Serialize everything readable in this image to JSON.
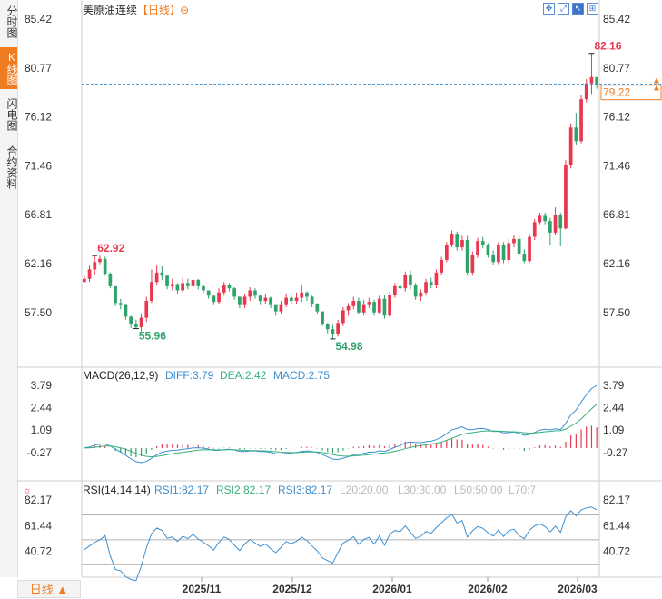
{
  "sidebar": {
    "tabs": [
      {
        "label": "分时图",
        "active": false
      },
      {
        "label": "K线图",
        "active": true
      },
      {
        "label": "闪电图",
        "active": false
      },
      {
        "label": "合约资料",
        "active": false
      }
    ]
  },
  "header": {
    "title": "美原油连续",
    "period_tag": "【日线】",
    "toolbar_icons": [
      "move-icon",
      "expand-icon",
      "cursor-icon",
      "zoom-icon"
    ]
  },
  "bottom": {
    "period_button": "日线 ▲"
  },
  "colors": {
    "up": "#e8384f",
    "down": "#2fa36b",
    "accent": "#f07c22",
    "diff": "#3d8fd1",
    "dea": "#37b07d",
    "rsi": "#3d8fd1"
  },
  "chart_data": [
    {
      "type": "candlestick",
      "title": "美原油连续【日线】",
      "y_ticks": [
        "85.42",
        "80.77",
        "76.12",
        "71.46",
        "66.81",
        "62.16",
        "57.50"
      ],
      "ylim": [
        53.5,
        85.42
      ],
      "x_ticks": [
        "2025/11",
        "2025/12",
        "2026/01",
        "2026/02",
        "2026/03"
      ],
      "current_price": "79.22",
      "annotations": [
        {
          "label": "62.92",
          "kind": "high"
        },
        {
          "label": "55.96",
          "kind": "low"
        },
        {
          "label": "54.98",
          "kind": "low"
        },
        {
          "label": "82.16",
          "kind": "high"
        }
      ],
      "close": [
        60.7,
        61.6,
        62.3,
        62.6,
        61.2,
        60.0,
        58.4,
        58.2,
        57.1,
        56.4,
        56.1,
        57.0,
        58.6,
        60.4,
        61.3,
        61.0,
        60.0,
        60.2,
        59.6,
        60.3,
        60.0,
        60.6,
        60.0,
        59.6,
        59.1,
        58.5,
        59.4,
        60.1,
        59.8,
        59.0,
        58.2,
        59.0,
        59.6,
        59.1,
        58.6,
        58.9,
        58.2,
        57.6,
        58.2,
        58.9,
        58.6,
        58.9,
        59.4,
        59.0,
        58.3,
        57.6,
        56.4,
        55.9,
        55.4,
        56.5,
        57.7,
        58.1,
        58.6,
        57.5,
        58.2,
        58.5,
        57.5,
        58.8,
        57.2,
        59.2,
        60.0,
        59.8,
        61.1,
        60.1,
        59.0,
        59.4,
        60.4,
        60.1,
        61.3,
        62.5,
        63.9,
        65.0,
        63.7,
        64.4,
        61.3,
        63.0,
        64.3,
        63.9,
        63.0,
        62.3,
        63.9,
        62.5,
        64.1,
        64.5,
        63.1,
        62.4,
        64.7,
        66.1,
        66.7,
        66.2,
        65.1,
        66.8,
        65.5,
        71.5,
        75.1,
        73.8,
        77.8,
        79.3,
        79.9,
        79.22
      ],
      "high": [
        61.0,
        62.0,
        62.92,
        62.9,
        62.8,
        61.3,
        60.0,
        58.8,
        58.3,
        57.2,
        56.8,
        57.4,
        59.0,
        61.6,
        62.0,
        61.9,
        61.1,
        60.7,
        60.3,
        60.8,
        60.7,
        60.9,
        60.7,
        60.1,
        59.5,
        59.0,
        59.8,
        60.4,
        60.3,
        59.9,
        59.0,
        59.3,
        59.9,
        59.8,
        59.2,
        59.3,
        59.0,
        58.1,
        58.6,
        59.3,
        59.1,
        59.4,
        60.1,
        59.5,
        59.1,
        58.4,
        57.5,
        56.5,
        56.3,
        56.8,
        58.0,
        58.4,
        59.0,
        58.9,
        58.7,
        58.9,
        58.7,
        59.1,
        59.2,
        59.5,
        60.3,
        60.5,
        61.4,
        61.5,
        60.3,
        59.7,
        60.7,
        60.8,
        61.6,
        62.8,
        64.2,
        65.3,
        65.2,
        64.8,
        64.8,
        63.3,
        64.6,
        64.7,
        64.1,
        63.4,
        64.2,
        64.2,
        64.5,
        64.9,
        64.8,
        63.5,
        65.0,
        66.4,
        67.0,
        67.0,
        66.5,
        67.5,
        67.0,
        72.0,
        75.5,
        76.5,
        78.2,
        79.7,
        82.16,
        79.6
      ],
      "low": [
        60.4,
        60.4,
        61.1,
        62.1,
        61.0,
        59.8,
        58.1,
        57.8,
        56.8,
        56.0,
        55.96,
        55.7,
        56.6,
        58.4,
        60.1,
        60.6,
        59.7,
        59.6,
        59.3,
        59.4,
        59.7,
        59.8,
        59.7,
        59.3,
        58.8,
        58.2,
        58.3,
        59.1,
        59.5,
        58.7,
        57.9,
        57.9,
        58.6,
        58.8,
        58.2,
        58.3,
        57.9,
        57.2,
        57.3,
        58.0,
        58.3,
        58.3,
        58.5,
        58.6,
        58.0,
        57.3,
        56.2,
        55.5,
        54.98,
        55.2,
        56.2,
        57.2,
        57.8,
        57.3,
        57.2,
        57.9,
        57.2,
        57.3,
        56.9,
        57.0,
        58.9,
        59.5,
        59.5,
        59.7,
        58.7,
        58.6,
        59.1,
        59.8,
        59.8,
        61.1,
        62.3,
        63.7,
        63.4,
        63.4,
        61.0,
        61.0,
        62.7,
        63.6,
        62.7,
        62.0,
        62.1,
        62.2,
        62.2,
        63.7,
        62.8,
        62.2,
        62.2,
        64.4,
        65.9,
        65.9,
        63.9,
        64.9,
        63.8,
        65.4,
        71.2,
        73.4,
        73.6,
        77.5,
        78.3,
        78.8
      ],
      "macd": {
        "params": "MACD(26,12,9)",
        "diff": "3.79",
        "dea": "2.42",
        "macd": "2.75",
        "y_ticks": [
          "3.79",
          "2.44",
          "1.09",
          "-0.27"
        ],
        "ylim": [
          -1.6,
          3.79
        ]
      },
      "rsi": {
        "params": "RSI(14,14,14)",
        "rsi1": "82.17",
        "rsi2": "82.17",
        "rsi3": "82.17",
        "guides": [
          "L20:20.00",
          "L30:30.00",
          "L50:50.00",
          "L70:7"
        ],
        "y_ticks": [
          "82.17",
          "61.44",
          "40.72"
        ],
        "ylim": [
          25,
          82.17
        ]
      }
    }
  ]
}
